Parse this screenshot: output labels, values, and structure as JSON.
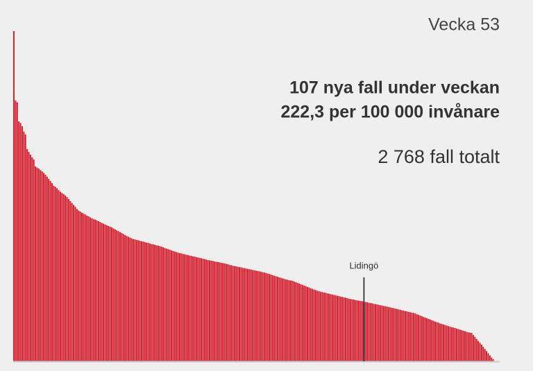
{
  "chart_data": {
    "type": "bar",
    "title": "Vecka 53",
    "annotations": [
      "107 nya fall under veckan",
      "222,3 per 100 000 invånare",
      "2 768 fall totalt"
    ],
    "color": "#d42434",
    "categories": [
      null,
      null,
      null,
      null,
      null,
      null,
      null,
      null,
      null,
      null,
      null,
      null,
      null,
      null,
      null,
      null,
      null,
      null,
      null,
      null,
      null,
      null,
      null,
      null,
      null,
      null,
      null,
      null,
      null,
      null,
      null,
      null,
      null,
      null,
      null,
      null,
      null,
      null,
      null,
      null,
      null,
      null,
      null,
      null,
      null,
      null,
      null,
      null,
      null,
      null,
      null,
      null,
      null,
      null,
      null,
      null,
      null,
      null,
      null,
      null,
      null,
      null,
      null,
      null,
      null,
      null,
      null,
      null,
      null,
      null,
      null,
      null,
      null,
      null,
      null,
      null,
      null,
      null,
      null,
      null,
      null,
      null,
      null,
      null,
      null,
      null,
      null,
      null,
      null,
      null,
      null,
      null,
      null,
      null,
      null,
      null,
      null,
      null,
      null,
      null,
      null,
      null,
      null,
      null,
      null,
      null,
      null,
      null,
      null,
      null,
      null,
      null,
      null,
      null,
      null,
      null,
      null,
      null,
      null,
      null,
      null,
      null,
      null,
      null,
      null,
      null,
      null,
      null,
      null,
      null,
      null,
      null,
      null,
      null,
      null,
      null,
      null,
      null,
      null,
      null,
      null,
      null,
      null,
      null,
      null,
      null,
      null,
      null,
      null,
      null,
      null,
      null,
      null,
      null,
      null,
      null,
      null,
      null,
      null,
      null,
      null,
      null,
      null,
      null,
      null,
      null,
      null,
      null,
      null,
      null,
      null,
      null,
      null,
      null,
      null,
      null,
      null,
      null,
      null,
      null,
      null,
      null,
      null,
      null,
      null,
      null,
      null,
      null,
      null,
      null,
      null,
      null,
      null,
      null,
      null,
      null,
      null,
      null,
      null,
      null,
      null,
      null,
      null,
      null,
      null,
      null,
      null,
      null,
      null,
      null,
      null,
      "Lidingö",
      null,
      null,
      null,
      null,
      null,
      null,
      null,
      null,
      null,
      null,
      null,
      null,
      null,
      null,
      null,
      null,
      null,
      null,
      null,
      null,
      null,
      null,
      null,
      null,
      null,
      null,
      null,
      null,
      null,
      null,
      null,
      null,
      null,
      null,
      null,
      null,
      null,
      null,
      null,
      null,
      null,
      null,
      null,
      null,
      null,
      null,
      null,
      null,
      null,
      null,
      null,
      null,
      null,
      null,
      null,
      null,
      null,
      null,
      null,
      null,
      null,
      null,
      null,
      null,
      null,
      null,
      null,
      null,
      null,
      null,
      null,
      null,
      null,
      null,
      null,
      null,
      null,
      null
    ],
    "values": [
      1230,
      972,
      965,
      894,
      888,
      876,
      856,
      845,
      791,
      780,
      770,
      760,
      752,
      726,
      722,
      718,
      712,
      708,
      702,
      695,
      688,
      680,
      672,
      664,
      654,
      650,
      645,
      638,
      632,
      627,
      623,
      618,
      612,
      605,
      597,
      590,
      583,
      576,
      568,
      562,
      558,
      554,
      550,
      547,
      543,
      540,
      536,
      533,
      530,
      528,
      525,
      522,
      519,
      516,
      513,
      510,
      507,
      504,
      502,
      499,
      495,
      492,
      488,
      485,
      481,
      478,
      474,
      470,
      467,
      464,
      461,
      458,
      455,
      454,
      452,
      451,
      449,
      447,
      446,
      444,
      442,
      441,
      439,
      437,
      436,
      434,
      432,
      431,
      429,
      427,
      425,
      422,
      420,
      418,
      416,
      413,
      411,
      409,
      407,
      405,
      403,
      402,
      400,
      399,
      397,
      396,
      394,
      393,
      391,
      390,
      388,
      387,
      385,
      384,
      382,
      381,
      379,
      377,
      376,
      375,
      374,
      372,
      371,
      370,
      369,
      367,
      366,
      365,
      363,
      362,
      359,
      358,
      356,
      355,
      354,
      352,
      351,
      350,
      348,
      347,
      346,
      344,
      343,
      342,
      340,
      339,
      338,
      336,
      335,
      334,
      332,
      331,
      329,
      327,
      325,
      323,
      321,
      319,
      317,
      315,
      313,
      311,
      309,
      307,
      305,
      304,
      302,
      301,
      300,
      297,
      295,
      292,
      290,
      287,
      285,
      282,
      280,
      277,
      275,
      272,
      270,
      267,
      265,
      263,
      261,
      259,
      258,
      256,
      255,
      253,
      252,
      250,
      249,
      247,
      246,
      244,
      243,
      241,
      240,
      238,
      237,
      235,
      233,
      232,
      231,
      230,
      228,
      227,
      226,
      225,
      224,
      222.3,
      221,
      220,
      218,
      217,
      216,
      214,
      213,
      212,
      210,
      209,
      208,
      206,
      205,
      204,
      202,
      201,
      199,
      198,
      196,
      195,
      193,
      192,
      190,
      189,
      187,
      186,
      184,
      183,
      181,
      180,
      178,
      175,
      173,
      170,
      168,
      165,
      163,
      160,
      158,
      156,
      153,
      151,
      148,
      146,
      144,
      141,
      139,
      137,
      135,
      133,
      131,
      129,
      127,
      126,
      124,
      122,
      120,
      118,
      116,
      114,
      112,
      110,
      108,
      107,
      106,
      98,
      91,
      83,
      76,
      69,
      62,
      54,
      46,
      38,
      30,
      22,
      14,
      8
    ]
  }
}
